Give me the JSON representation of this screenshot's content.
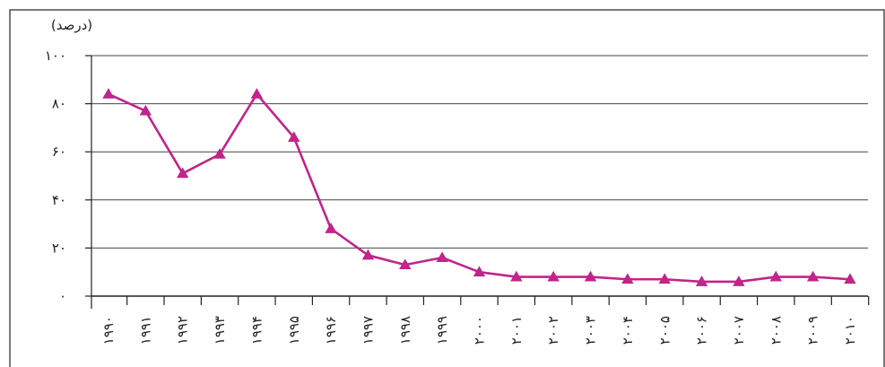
{
  "chart_data": {
    "type": "line",
    "ylabel": "(درصد)",
    "x": [
      "۱۹۹۰",
      "۱۹۹۱",
      "۱۹۹۲",
      "۱۹۹۳",
      "۱۹۹۴",
      "۱۹۹۵",
      "۱۹۹۶",
      "۱۹۹۷",
      "۱۹۹۸",
      "۱۹۹۹",
      "۲۰۰۰",
      "۲۰۰۱",
      "۲۰۰۲",
      "۲۰۰۳",
      "۲۰۰۴",
      "۲۰۰۵",
      "۲۰۰۶",
      "۲۰۰۷",
      "۲۰۰۸",
      "۲۰۰۹",
      "۲۰۱۰"
    ],
    "values": [
      84,
      77,
      51,
      59,
      84,
      66,
      28,
      17,
      13,
      16,
      10,
      8,
      8,
      8,
      7,
      7,
      6,
      6,
      8,
      8,
      7
    ],
    "ylim": [
      0,
      100
    ],
    "yticks": [
      {
        "value": 0,
        "label": "۰"
      },
      {
        "value": 20,
        "label": "۲۰"
      },
      {
        "value": 40,
        "label": "۴۰"
      },
      {
        "value": 60,
        "label": "۶۰"
      },
      {
        "value": 80,
        "label": "۸۰"
      },
      {
        "value": 100,
        "label": "۱۰۰"
      }
    ],
    "grid": true,
    "line_color": "#c0258a",
    "marker": "triangle"
  }
}
